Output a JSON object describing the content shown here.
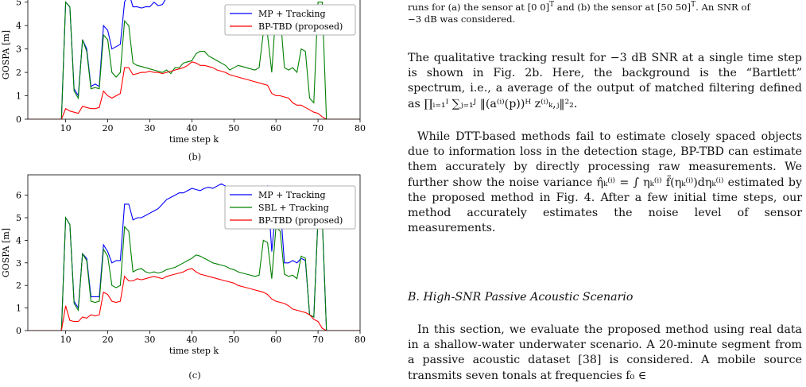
{
  "figure": {
    "panels": [
      {
        "sublabel": "(b)",
        "ylabel": "GOSPA [m]",
        "xlabel": "time step k"
      },
      {
        "sublabel": "(c)",
        "ylabel": "GOSPA [m]",
        "xlabel": "time step k"
      }
    ]
  },
  "chart_data": [
    {
      "type": "line",
      "xlabel": "time step k",
      "ylabel": "GOSPA [m]",
      "xlim": [
        1,
        80
      ],
      "ylim": [
        0,
        5.5
      ],
      "xticks": [
        10,
        20,
        30,
        40,
        50,
        60,
        70,
        80
      ],
      "yticks": [
        0,
        1,
        2,
        3,
        4,
        5
      ],
      "legend_position": "top-right",
      "series": [
        {
          "name": "MP + Tracking",
          "color": "#0000ff",
          "x": [
            1,
            9,
            10,
            11,
            12,
            13,
            14,
            15,
            16,
            17,
            18,
            19,
            20,
            21,
            22,
            23,
            24,
            25,
            26,
            27,
            28,
            29,
            30,
            31,
            32,
            33,
            34,
            35,
            36,
            37
          ],
          "y": [
            0,
            0,
            5.0,
            4.8,
            1.3,
            1.0,
            3.4,
            3.0,
            1.4,
            1.5,
            1.4,
            4.0,
            3.8,
            3.0,
            3.1,
            3.2,
            5.0,
            5.4,
            4.8,
            4.8,
            4.75,
            4.8,
            4.8,
            5.0,
            4.85,
            4.9,
            5.2,
            5.25,
            5.5,
            5.5
          ]
        },
        {
          "name": "",
          "color": "#008000",
          "x": [
            1,
            9,
            10,
            11,
            12,
            13,
            14,
            15,
            16,
            17,
            18,
            19,
            20,
            21,
            22,
            23,
            24,
            25,
            26,
            27,
            28,
            29,
            30,
            31,
            32,
            33,
            34,
            35,
            36,
            37,
            38,
            39,
            40,
            41,
            42,
            43,
            44,
            45,
            46,
            47,
            48,
            49,
            50,
            51,
            52,
            53,
            54,
            55,
            56,
            57,
            58,
            59,
            60,
            61,
            62,
            63,
            64,
            65,
            66,
            67,
            68,
            69,
            70,
            71,
            72,
            80
          ],
          "y": [
            0,
            0,
            5.0,
            4.8,
            1.2,
            0.9,
            3.4,
            2.9,
            1.3,
            1.35,
            1.3,
            3.6,
            3.4,
            2.0,
            1.8,
            2.0,
            4.2,
            4.0,
            2.4,
            2.3,
            2.25,
            2.2,
            2.15,
            2.1,
            2.05,
            2.0,
            2.1,
            1.95,
            2.2,
            2.2,
            2.4,
            2.45,
            2.5,
            2.8,
            2.9,
            2.9,
            2.7,
            2.6,
            2.5,
            2.4,
            2.3,
            2.1,
            2.2,
            2.3,
            2.25,
            2.2,
            2.15,
            2.1,
            2.2,
            3.7,
            3.6,
            2.0,
            4.7,
            4.5,
            2.2,
            2.1,
            2.2,
            2.0,
            3.0,
            2.9,
            0.9,
            0.7,
            5.0,
            5.0,
            0,
            0
          ]
        },
        {
          "name": "BP-TBD (proposed)",
          "color": "#ff0000",
          "x": [
            1,
            9,
            10,
            11,
            12,
            13,
            14,
            15,
            16,
            17,
            18,
            19,
            20,
            21,
            22,
            23,
            24,
            25,
            26,
            27,
            28,
            29,
            30,
            31,
            32,
            33,
            34,
            35,
            36,
            37,
            38,
            39,
            40,
            41,
            42,
            43,
            44,
            45,
            46,
            47,
            48,
            49,
            50,
            51,
            52,
            53,
            54,
            55,
            56,
            57,
            58,
            59,
            60,
            61,
            62,
            63,
            64,
            65,
            66,
            67,
            68,
            69,
            70,
            71,
            72,
            80
          ],
          "y": [
            0,
            0,
            0.45,
            0.35,
            0.3,
            0.25,
            0.55,
            0.5,
            0.45,
            0.45,
            0.5,
            1.2,
            1.0,
            0.9,
            1.0,
            1.1,
            2.2,
            2.2,
            1.9,
            1.95,
            2.0,
            2.0,
            2.05,
            2.0,
            2.0,
            1.95,
            2.0,
            2.05,
            2.1,
            2.15,
            2.2,
            2.3,
            2.45,
            2.4,
            2.3,
            2.3,
            2.25,
            2.2,
            2.1,
            2.05,
            2.0,
            1.9,
            1.85,
            1.8,
            1.75,
            1.7,
            1.65,
            1.6,
            1.55,
            1.5,
            1.45,
            1.1,
            1.0,
            1.0,
            0.95,
            0.9,
            0.7,
            0.6,
            0.6,
            0.5,
            0.4,
            0.3,
            0.25,
            0.1,
            0,
            0
          ]
        }
      ]
    },
    {
      "type": "line",
      "xlabel": "time step k",
      "ylabel": "GOSPA [m]",
      "xlim": [
        1,
        80
      ],
      "ylim": [
        0,
        6.9
      ],
      "xticks": [
        10,
        20,
        30,
        40,
        50,
        60,
        70,
        80
      ],
      "yticks": [
        0,
        1,
        2,
        3,
        4,
        5,
        6
      ],
      "legend_position": "top-right",
      "series": [
        {
          "name": "MP + Tracking",
          "color": "#0000ff",
          "x": [
            1,
            9,
            10,
            11,
            12,
            13,
            14,
            15,
            16,
            17,
            18,
            19,
            20,
            21,
            22,
            23,
            24,
            25,
            26,
            27,
            28,
            29,
            30,
            31,
            32,
            33,
            34,
            35,
            36,
            37,
            38,
            39,
            40,
            41,
            42,
            43,
            44,
            45,
            46,
            47,
            48,
            49,
            50,
            51,
            52,
            53,
            54,
            55,
            56,
            57,
            58,
            59,
            60,
            61,
            62,
            63,
            64,
            65,
            66,
            67,
            68,
            69,
            70,
            71,
            72,
            80
          ],
          "y": [
            0,
            0,
            5.0,
            4.7,
            1.3,
            1.0,
            3.4,
            3.2,
            1.5,
            1.5,
            1.5,
            3.8,
            3.5,
            3.0,
            3.1,
            3.1,
            5.6,
            5.6,
            4.9,
            5.0,
            5.0,
            5.1,
            5.2,
            5.3,
            5.4,
            5.6,
            5.8,
            5.9,
            6.0,
            6.1,
            6.1,
            6.2,
            6.3,
            6.25,
            6.2,
            6.3,
            6.35,
            6.3,
            6.4,
            6.5,
            6.4,
            6.3,
            6.2,
            6.15,
            6.1,
            6.0,
            5.9,
            5.9,
            5.85,
            6.2,
            6.4,
            3.5,
            5.5,
            5.6,
            3.0,
            3.0,
            3.1,
            3.0,
            3.2,
            3.1,
            0.7,
            0.6,
            5.0,
            5.0,
            0,
            0
          ]
        },
        {
          "name": "SBL + Tracking",
          "color": "#008000",
          "x": [
            1,
            9,
            10,
            11,
            12,
            13,
            14,
            15,
            16,
            17,
            18,
            19,
            20,
            21,
            22,
            23,
            24,
            25,
            26,
            27,
            28,
            29,
            30,
            31,
            32,
            33,
            34,
            35,
            36,
            37,
            38,
            39,
            40,
            41,
            42,
            43,
            44,
            45,
            46,
            47,
            48,
            49,
            50,
            51,
            52,
            53,
            54,
            55,
            56,
            57,
            58,
            59,
            60,
            61,
            62,
            63,
            64,
            65,
            66,
            67,
            68,
            69,
            70,
            71,
            72,
            80
          ],
          "y": [
            0,
            0,
            5.0,
            4.7,
            1.2,
            0.9,
            3.4,
            3.1,
            1.3,
            1.25,
            1.3,
            3.6,
            3.3,
            2.0,
            1.9,
            2.0,
            4.6,
            4.4,
            2.6,
            2.7,
            2.75,
            2.6,
            2.55,
            2.6,
            2.55,
            2.6,
            2.7,
            2.75,
            2.8,
            2.9,
            3.0,
            3.1,
            3.2,
            3.35,
            3.3,
            3.2,
            3.1,
            3.0,
            2.95,
            2.9,
            2.85,
            2.75,
            2.7,
            2.6,
            2.55,
            2.5,
            2.45,
            2.4,
            2.45,
            4.0,
            3.9,
            2.3,
            4.6,
            4.4,
            2.5,
            2.4,
            2.45,
            2.3,
            3.3,
            3.2,
            0.7,
            0.6,
            5.0,
            5.0,
            0,
            0
          ]
        },
        {
          "name": "BP-TBD (proposed)",
          "color": "#ff0000",
          "x": [
            1,
            9,
            10,
            11,
            12,
            13,
            14,
            15,
            16,
            17,
            18,
            19,
            20,
            21,
            22,
            23,
            24,
            25,
            26,
            27,
            28,
            29,
            30,
            31,
            32,
            33,
            34,
            35,
            36,
            37,
            38,
            39,
            40,
            41,
            42,
            43,
            44,
            45,
            46,
            47,
            48,
            49,
            50,
            51,
            52,
            53,
            54,
            55,
            56,
            57,
            58,
            59,
            60,
            61,
            62,
            63,
            64,
            65,
            66,
            67,
            68,
            69,
            70,
            71,
            72,
            80
          ],
          "y": [
            0,
            0,
            1.1,
            0.45,
            0.4,
            0.4,
            0.6,
            0.55,
            0.7,
            0.65,
            0.7,
            1.7,
            1.6,
            1.3,
            1.25,
            1.3,
            2.4,
            2.2,
            2.2,
            2.3,
            2.25,
            2.3,
            2.35,
            2.4,
            2.35,
            2.3,
            2.4,
            2.45,
            2.5,
            2.55,
            2.6,
            2.7,
            2.75,
            2.6,
            2.5,
            2.45,
            2.4,
            2.35,
            2.3,
            2.25,
            2.2,
            2.15,
            2.1,
            2.0,
            1.95,
            1.9,
            1.85,
            1.8,
            1.75,
            1.7,
            1.6,
            1.4,
            1.3,
            1.25,
            1.2,
            1.1,
            0.95,
            0.9,
            0.85,
            0.8,
            0.7,
            0.5,
            0.4,
            0.1,
            0,
            0
          ]
        }
      ]
    }
  ],
  "text": {
    "caption_line1": "runs for (a) the sensor at [0 0]",
    "caption_sup1": "T",
    "caption_mid": " and (b) the sensor at [50 50]",
    "caption_sup2": "T",
    "caption_end": ". An SNR of",
    "caption_line2": "−3 dB was considered.",
    "para1_a": "The qualitative tracking result for −3 dB SNR at a single time step is shown in Fig. 2b. Here, the background is the “Bartlett” spectrum, i.e., a average of the output of matched filtering defined as ",
    "para1_math": "∏ᵢ₌₁ᴵ ∑ⱼ₌₁ᴶ ‖(a⁽ⁱ⁾(p))ᴴ z⁽ⁱ⁾ₖ,ⱼ‖²₂.",
    "para2_a": "While DTT-based methods fail to estimate closely spaced objects due to information loss in the detection stage, BP-TBD can estimate them accurately by directly processing raw measurements. We further show the noise variance ",
    "para2_math": "η̂ₖ⁽ⁱ⁾ = ∫ ηₖ⁽ⁱ⁾ f̃(ηₖ⁽ⁱ⁾)dηₖ⁽ⁱ⁾",
    "para2_b": " estimated by the proposed method in Fig. 4. After a few initial time steps, our method accurately estimates the noise level of sensor measurements.",
    "section_title": "B. High-SNR Passive Acoustic Scenario",
    "para3": "In this section, we evaluate the proposed method using real data in a shallow-water underwater scenario. A 20-minute segment from a passive acoustic dataset [38] is considered. A mobile source transmits seven tonals at frequencies f₀ ∈"
  }
}
